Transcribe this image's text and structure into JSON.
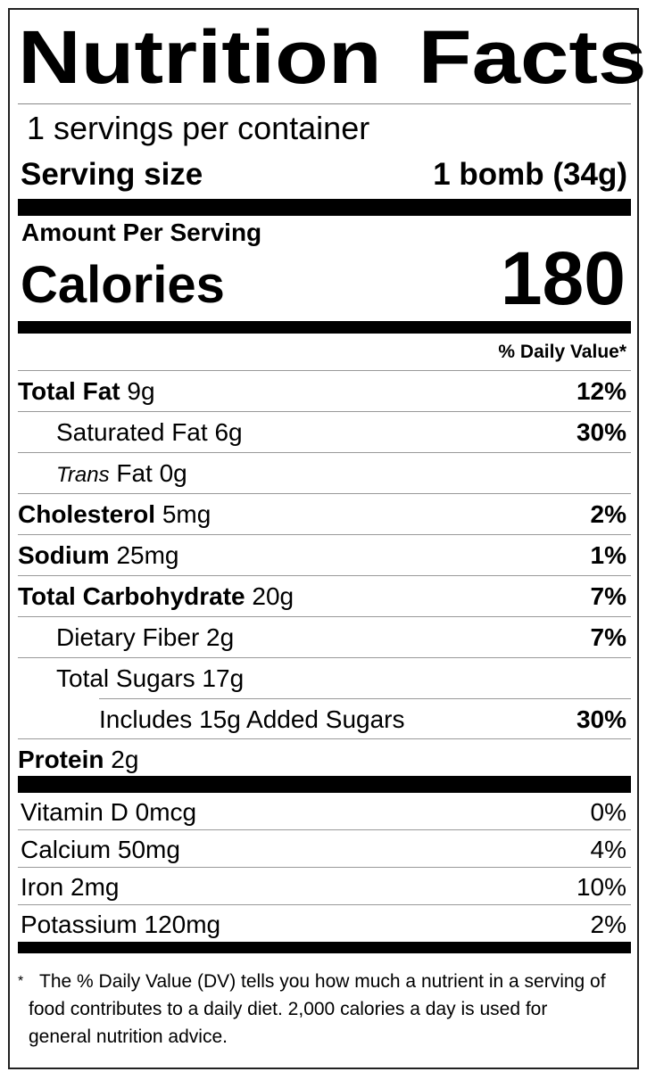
{
  "title": "Nutrition Facts",
  "servings_per_container": "1 servings per container",
  "serving_size": {
    "label": "Serving size",
    "value": "1 bomb (34g)"
  },
  "amount_per_serving": "Amount Per Serving",
  "calories": {
    "label": "Calories",
    "value": "180"
  },
  "daily_value_header": "% Daily Value*",
  "nutrients": [
    {
      "name": "Total Fat",
      "amount": "9g",
      "dv": "12%"
    },
    {
      "name": "Saturated Fat",
      "amount": "6g",
      "dv": "30%"
    },
    {
      "name_italic": "Trans",
      "name": "Fat",
      "amount": "0g",
      "dv": ""
    },
    {
      "name": "Cholesterol",
      "amount": "5mg",
      "dv": "2%"
    },
    {
      "name": "Sodium",
      "amount": "25mg",
      "dv": "1%"
    },
    {
      "name": "Total Carbohydrate",
      "amount": "20g",
      "dv": "7%"
    },
    {
      "name": "Dietary Fiber",
      "amount": "2g",
      "dv": "7%"
    },
    {
      "name": "Total Sugars",
      "amount": "17g",
      "dv": ""
    },
    {
      "text": "Includes 15g Added Sugars",
      "dv": "30%"
    },
    {
      "name": "Protein",
      "amount": "2g",
      "dv": ""
    }
  ],
  "vitamins": [
    {
      "text": "Vitamin D 0mcg",
      "dv": "0%"
    },
    {
      "text": "Calcium 50mg",
      "dv": "4%"
    },
    {
      "text": "Iron 2mg",
      "dv": "10%"
    },
    {
      "text": "Potassium 120mg",
      "dv": "2%"
    }
  ],
  "footnote": {
    "star": "*",
    "text": "The % Daily Value (DV) tells you how much a nutrient in a serving of food contributes to a daily diet. 2,000 calories a day is used for general nutrition advice."
  }
}
